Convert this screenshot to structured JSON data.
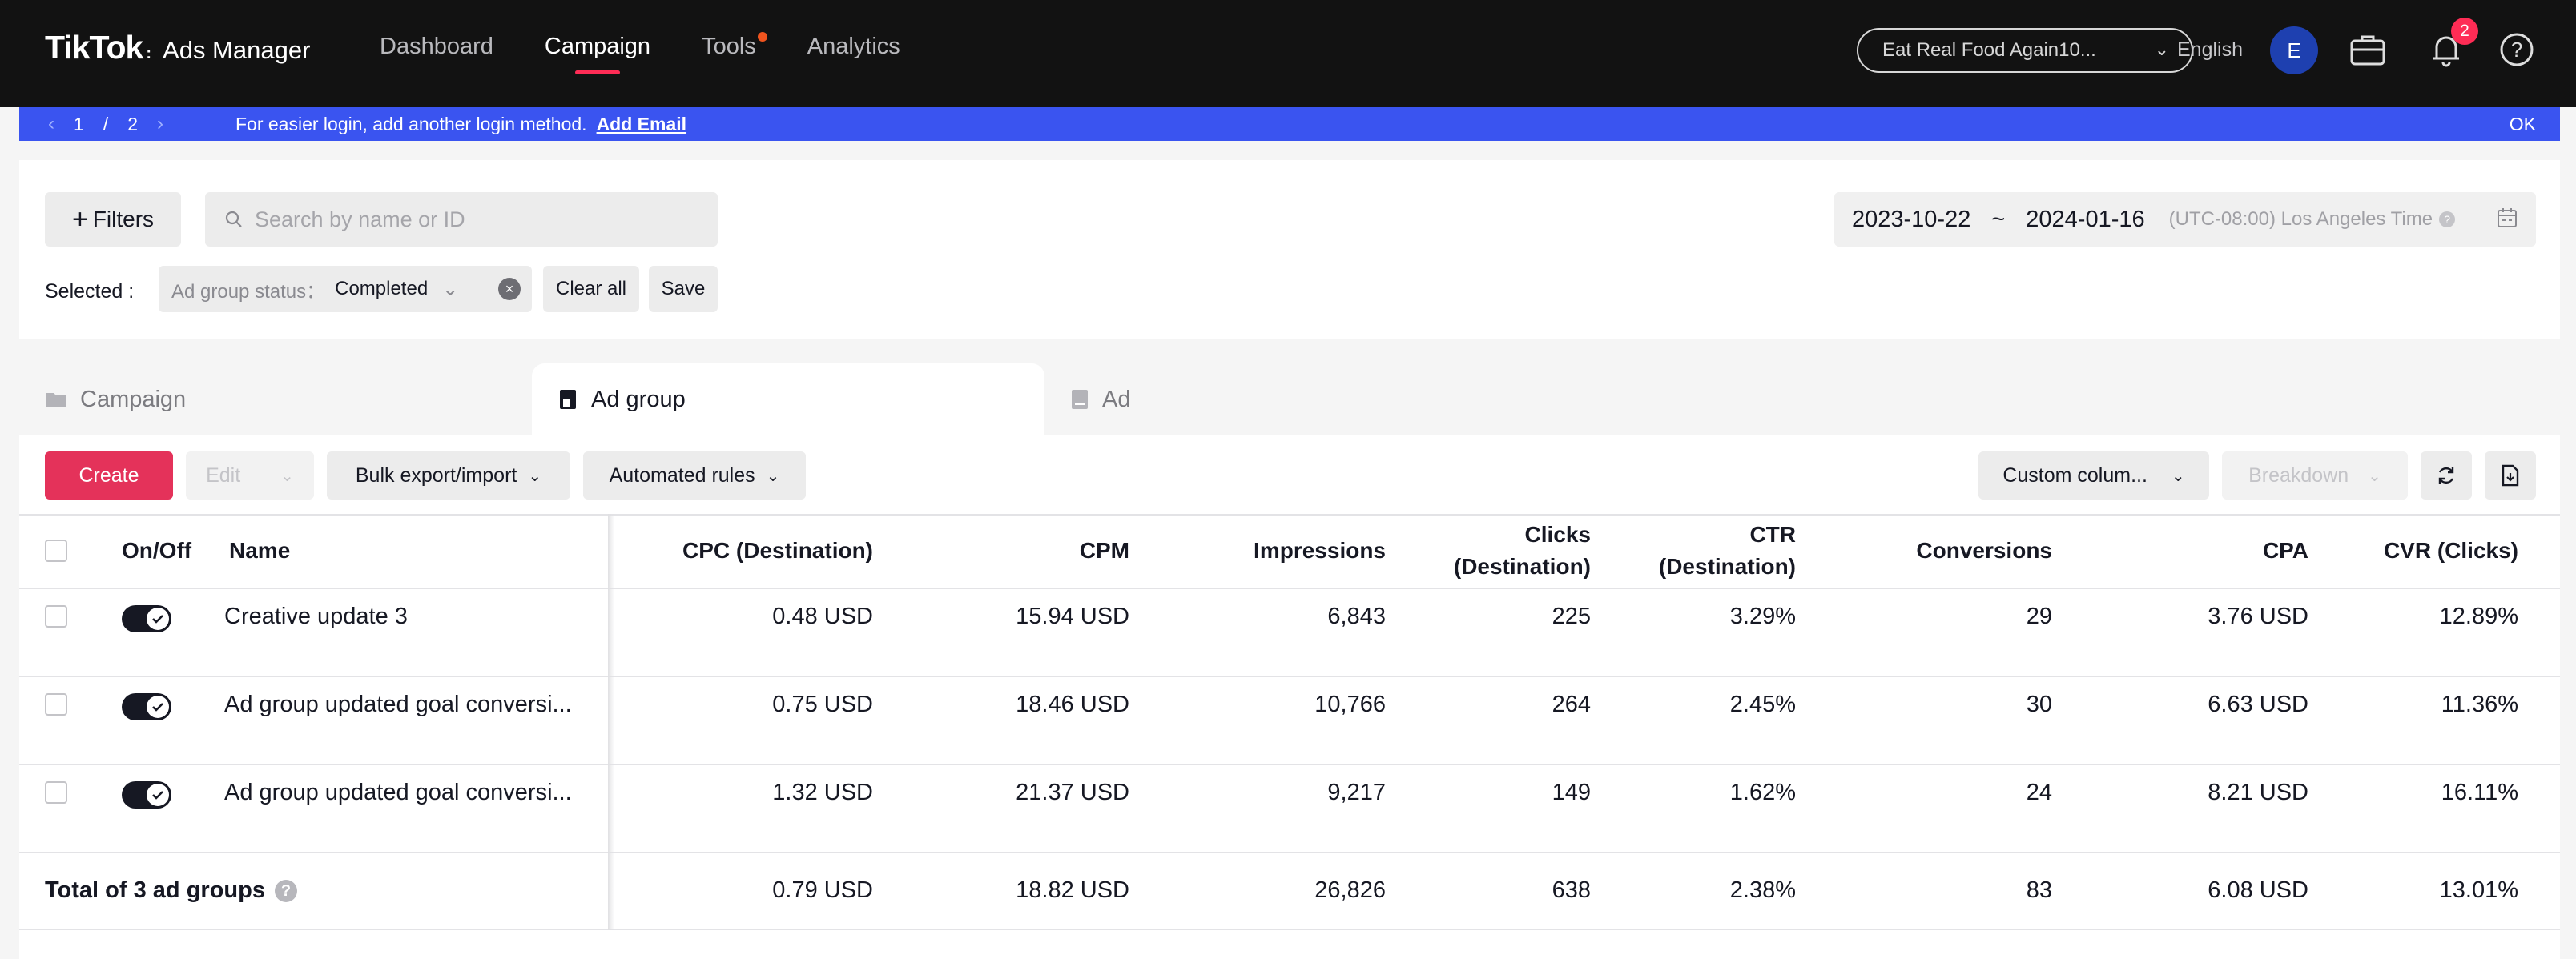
{
  "topnav": {
    "brand": "TikTok",
    "brand_sub": "Ads Manager",
    "links": [
      "Dashboard",
      "Campaign",
      "Tools",
      "Analytics"
    ],
    "active_link": "Campaign",
    "account": "Eat Real Food Again10...",
    "language": "English",
    "avatar_initial": "E",
    "notification_count": "2",
    "icons": [
      "briefcase-icon",
      "bell-icon",
      "help-icon"
    ]
  },
  "banner": {
    "page_current": "1",
    "page_sep": "/",
    "page_total": "2",
    "message": "For easier login, add another login method.",
    "link": "Add Email",
    "ok": "OK"
  },
  "filters": {
    "filters_label": "Filters",
    "search_placeholder": "Search by name or ID",
    "date_start": "2023-10-22",
    "date_sep": "~",
    "date_end": "2024-01-16",
    "timezone": "(UTC-08:00) Los Angeles Time",
    "selected_label": "Selected :",
    "chip_key": "Ad group status：",
    "chip_value": "Completed",
    "clear_all": "Clear all",
    "save": "Save"
  },
  "tabs": [
    "Campaign",
    "Ad group",
    "Ad"
  ],
  "active_tab": "Ad group",
  "toolbar": {
    "create": "Create",
    "edit": "Edit",
    "bulk": "Bulk export/import",
    "rules": "Automated rules",
    "custom_columns": "Custom colum...",
    "breakdown": "Breakdown"
  },
  "table": {
    "headers": {
      "onoff": "On/Off",
      "name": "Name",
      "cpc": "CPC (Destination)",
      "cpm": "CPM",
      "impressions": "Impressions",
      "clicks_1": "Clicks",
      "clicks_2": "(Destination)",
      "ctr_1": "CTR",
      "ctr_2": "(Destination)",
      "conversions": "Conversions",
      "cpa": "CPA",
      "cvr": "CVR (Clicks)"
    },
    "rows": [
      {
        "name": "Creative update 3",
        "cpc": "0.48 USD",
        "cpm": "15.94 USD",
        "impressions": "6,843",
        "clicks": "225",
        "ctr": "3.29%",
        "conversions": "29",
        "cpa": "3.76 USD",
        "cvr": "12.89%"
      },
      {
        "name": "Ad group updated goal conversi...",
        "cpc": "0.75 USD",
        "cpm": "18.46 USD",
        "impressions": "10,766",
        "clicks": "264",
        "ctr": "2.45%",
        "conversions": "30",
        "cpa": "6.63 USD",
        "cvr": "11.36%"
      },
      {
        "name": "Ad group updated goal conversi...",
        "cpc": "1.32 USD",
        "cpm": "21.37 USD",
        "impressions": "9,217",
        "clicks": "149",
        "ctr": "1.62%",
        "conversions": "24",
        "cpa": "8.21 USD",
        "cvr": "16.11%"
      }
    ],
    "total": {
      "label": "Total of 3 ad groups",
      "cpc": "0.79 USD",
      "cpm": "18.82 USD",
      "impressions": "26,826",
      "clicks": "638",
      "ctr": "2.38%",
      "conversions": "83",
      "cpa": "6.08 USD",
      "cvr": "13.01%"
    }
  },
  "colors": {
    "nav_bg": "#121212",
    "accent": "#fe2c55",
    "banner": "#3a54f0",
    "create_btn": "#e4325a"
  }
}
